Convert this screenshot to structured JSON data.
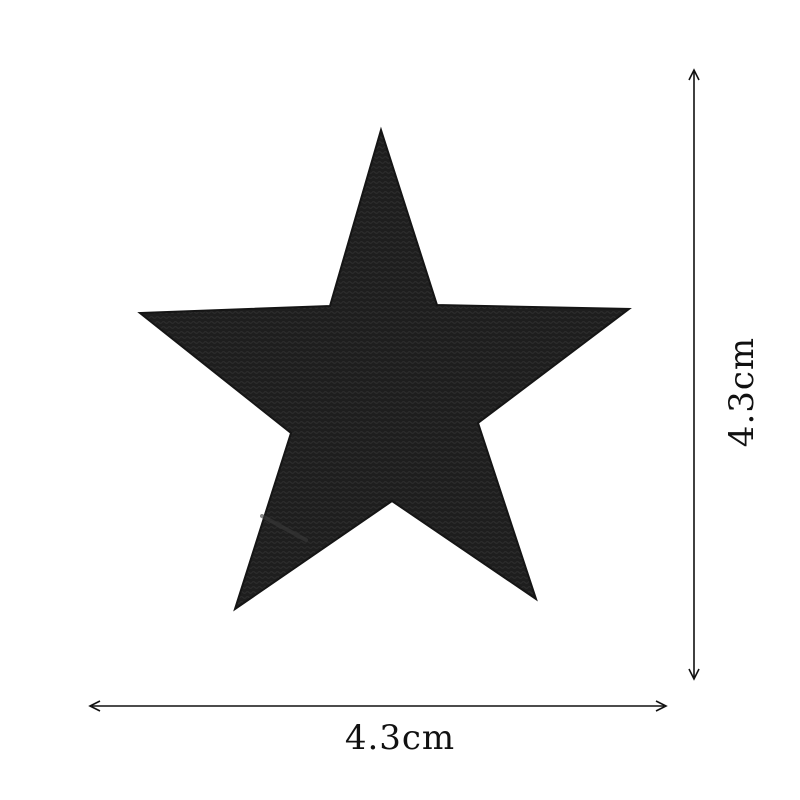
{
  "patch": {
    "shape_icon": "five-point-star-icon",
    "fill_color": "#1c1c1c",
    "stitch_color": "#2a2a2a"
  },
  "dimensions": {
    "width_label": "4.3cm",
    "height_label": "4.3cm",
    "line_color": "#111111"
  }
}
